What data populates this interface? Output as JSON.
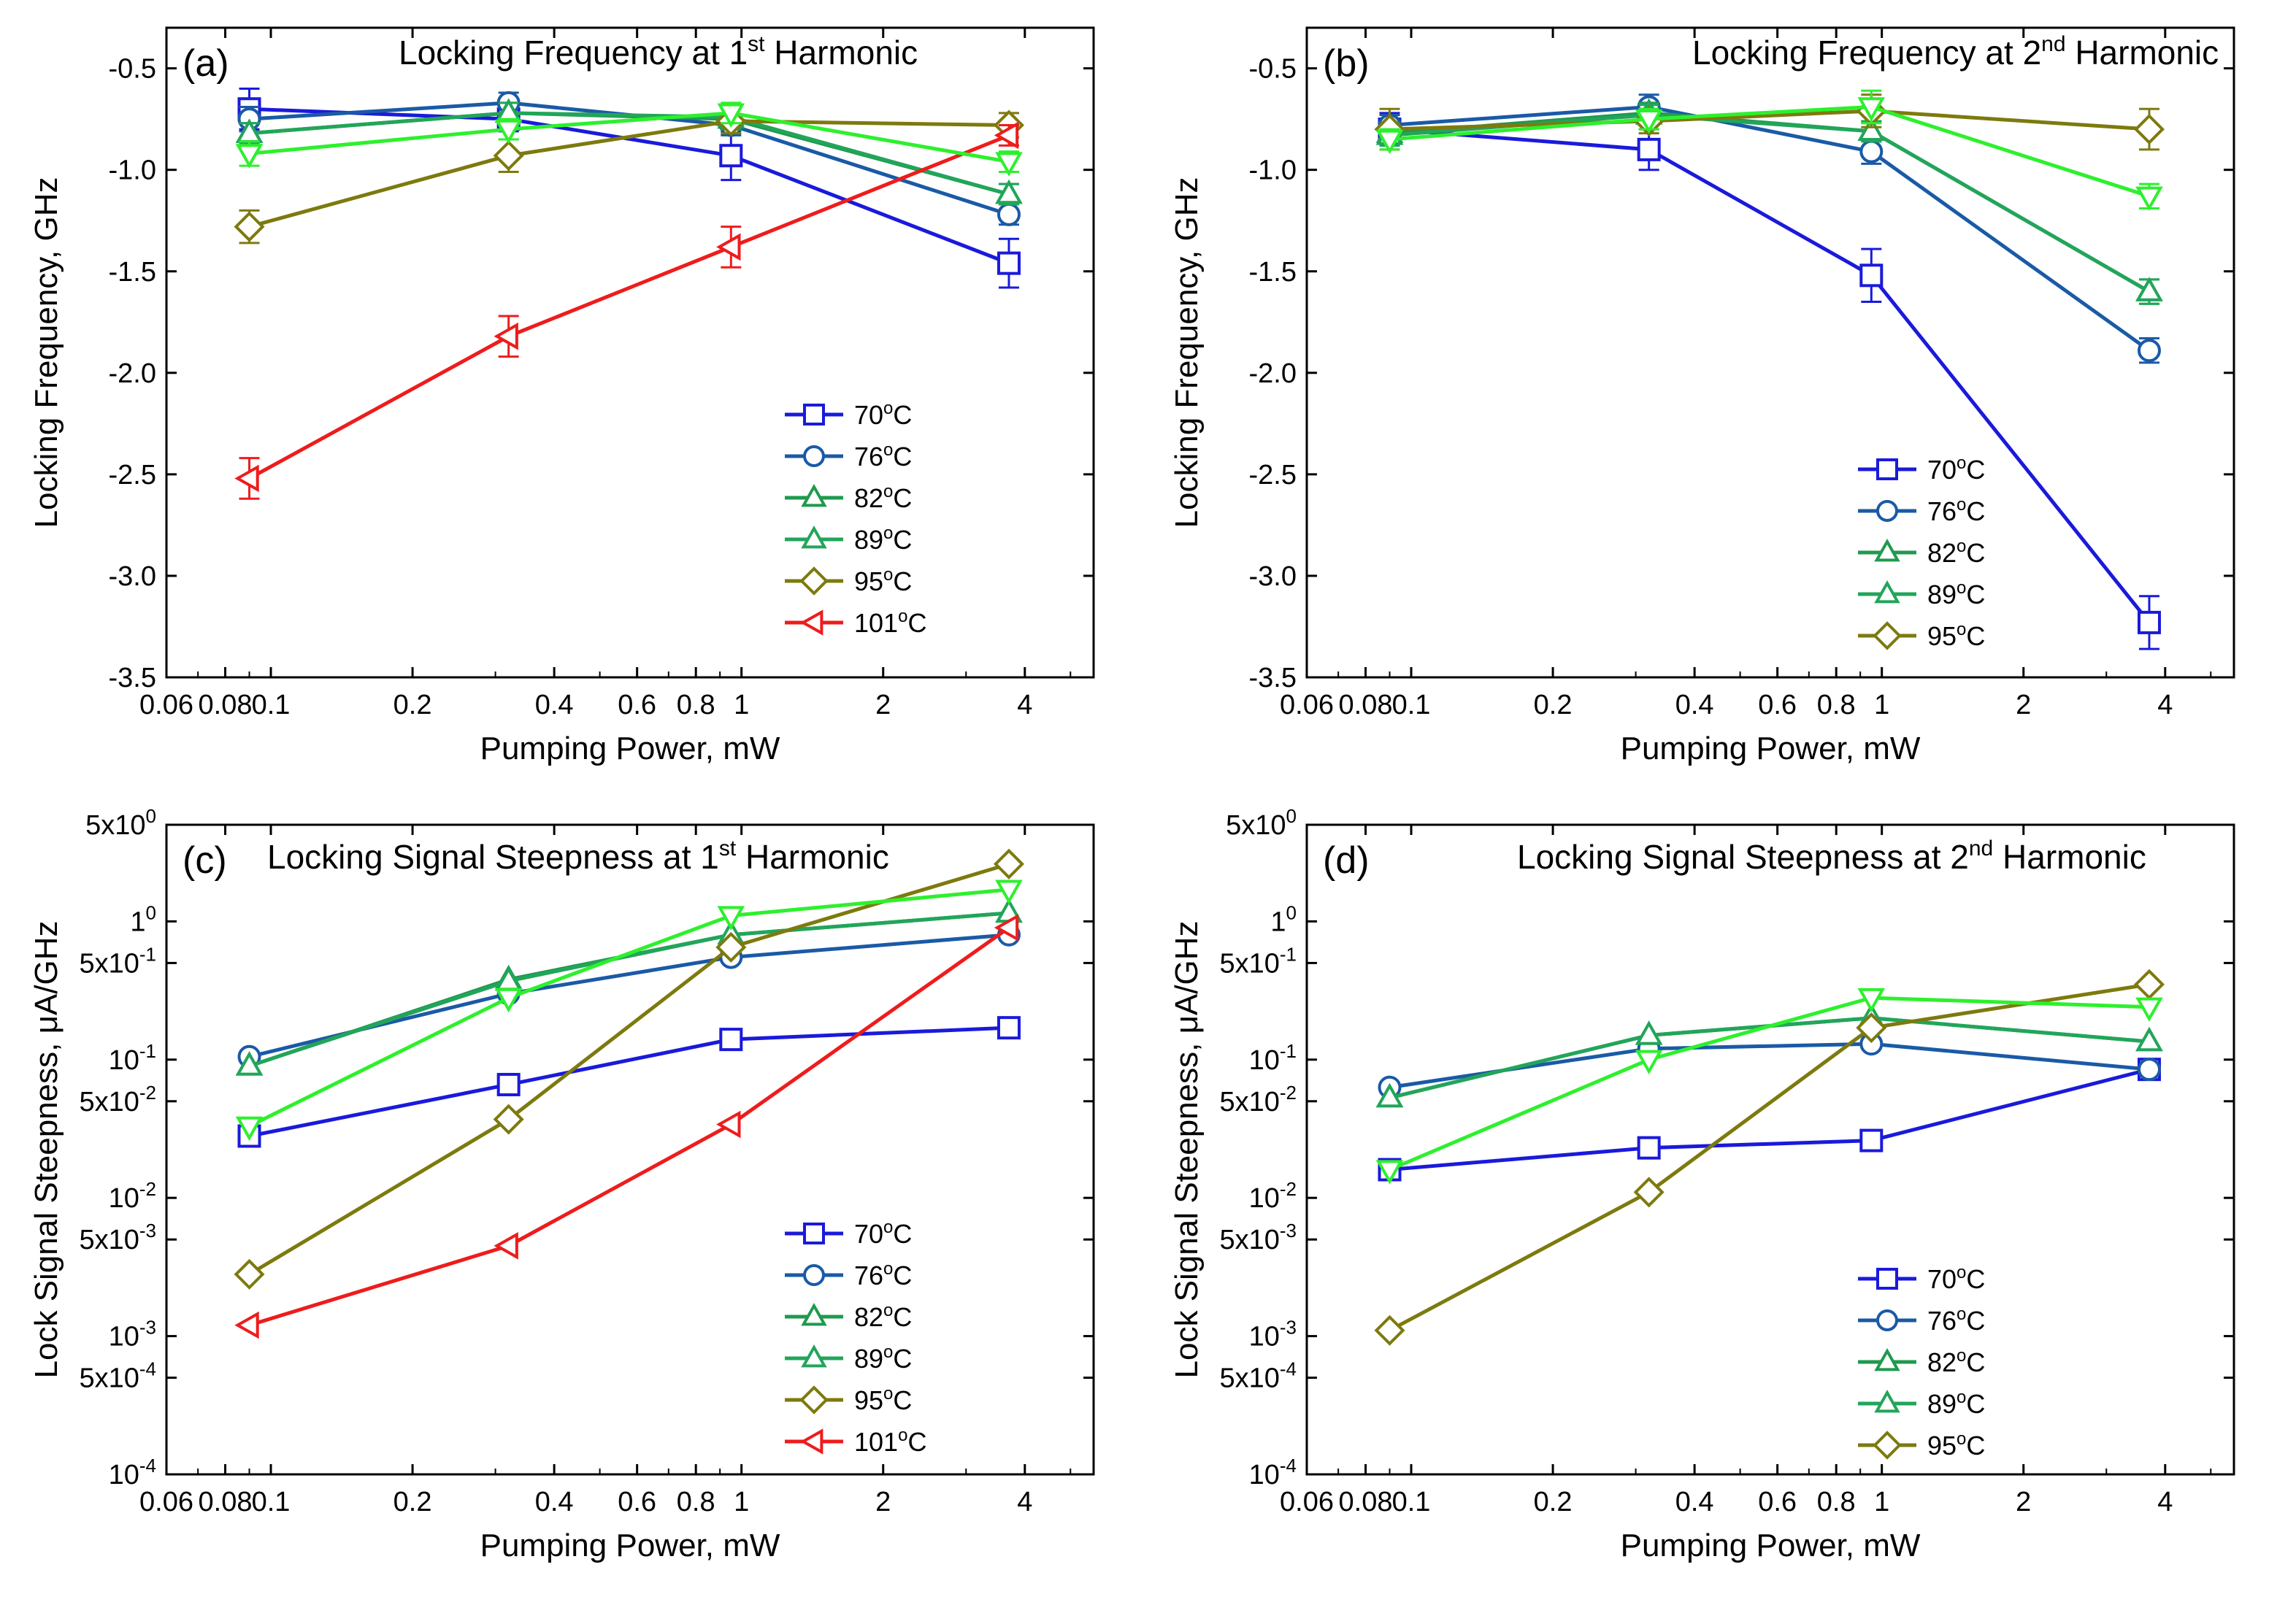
{
  "chart_data": [
    {
      "type": "line",
      "panel": "(a)",
      "title_main": "Locking Frequency at 1",
      "title_sup": "st",
      "title_rest": " Harmonic",
      "xlabel": "Pumping Power, mW",
      "ylabel": "Locking Frequency, GHz",
      "xscale": "log",
      "yscale": "linear",
      "xlim": [
        0.06,
        5.6
      ],
      "ylim": [
        -3.5,
        -0.3
      ],
      "xticks": [
        {
          "v": 0.06,
          "l": "0.06"
        },
        {
          "v": 0.08,
          "l": "0.08"
        },
        {
          "v": 0.1,
          "l": "0.1"
        },
        {
          "v": 0.2,
          "l": "0.2"
        },
        {
          "v": 0.4,
          "l": "0.4"
        },
        {
          "v": 0.6,
          "l": "0.6"
        },
        {
          "v": 0.8,
          "l": "0.8"
        },
        {
          "v": 1,
          "l": "1"
        },
        {
          "v": 2,
          "l": "2"
        },
        {
          "v": 4,
          "l": "4"
        }
      ],
      "yticks": [
        {
          "v": -0.5,
          "l": "-0.5"
        },
        {
          "v": -1.0,
          "l": "-1.0"
        },
        {
          "v": -1.5,
          "l": "-1.5"
        },
        {
          "v": -2.0,
          "l": "-2.0"
        },
        {
          "v": -2.5,
          "l": "-2.5"
        },
        {
          "v": -3.0,
          "l": "-3.0"
        },
        {
          "v": -3.5,
          "l": "-3.5"
        }
      ],
      "legend_position": "lower-right",
      "series": [
        {
          "name": "70",
          "unit": "oC",
          "marker": "square",
          "color": "#1a1adb",
          "x": [
            0.09,
            0.32,
            0.95,
            3.7
          ],
          "values": [
            -0.7,
            -0.75,
            -0.93,
            -1.46
          ],
          "err": [
            0.1,
            0.06,
            0.12,
            0.12
          ]
        },
        {
          "name": "76",
          "unit": "oC",
          "marker": "circle",
          "color": "#1a5aa6",
          "x": [
            0.09,
            0.32,
            0.95,
            3.7
          ],
          "values": [
            -0.75,
            -0.67,
            -0.78,
            -1.22
          ],
          "err": [
            0.06,
            0.05,
            0.05,
            0.05
          ]
        },
        {
          "name": "82",
          "unit": "oC",
          "marker": "triangle-up",
          "color": "#1f9a4e",
          "x": [
            0.09,
            0.32,
            0.95,
            3.7
          ],
          "values": [
            -0.82,
            -0.72,
            -0.75,
            -1.12
          ],
          "err": [
            0.05,
            0.05,
            0.05,
            0.05
          ]
        },
        {
          "name": "89",
          "unit": "oC",
          "marker": "triangle-up",
          "color": "#22a55a",
          "x": [
            0.09,
            0.32,
            0.95,
            3.7
          ],
          "values": [
            -0.82,
            -0.72,
            -0.74,
            -1.12
          ],
          "err": [
            0.05,
            0.05,
            0.05,
            0.05
          ]
        },
        {
          "name": "95",
          "unit": "oC",
          "marker": "diamond",
          "color": "#7d7a0e",
          "x": [
            0.09,
            0.32,
            0.95,
            3.7
          ],
          "values": [
            -1.28,
            -0.93,
            -0.76,
            -0.78
          ],
          "err": [
            0.08,
            0.08,
            0.06,
            0.06
          ]
        },
        {
          "name": "101",
          "unit": "oC",
          "marker": "triangle-left",
          "color": "#ee1c1c",
          "x": [
            0.09,
            0.32,
            0.95,
            3.7
          ],
          "values": [
            -2.52,
            -1.82,
            -1.38,
            -0.83
          ],
          "err": [
            0.1,
            0.1,
            0.1,
            0.05
          ]
        },
        {
          "name": "",
          "unit": "",
          "marker": "triangle-down",
          "color": "#2df02d",
          "legend": false,
          "x": [
            0.09,
            0.32,
            0.95,
            3.7
          ],
          "values": [
            -0.92,
            -0.8,
            -0.72,
            -0.96
          ],
          "err": [
            0.06,
            0.05,
            0.05,
            0.05
          ]
        }
      ]
    },
    {
      "type": "line",
      "panel": "(b)",
      "title_main": "Locking Frequency at 2",
      "title_sup": "nd",
      "title_rest": " Harmonic",
      "xlabel": "Pumping Power, mW",
      "ylabel": "Locking Frequency, GHz",
      "xscale": "log",
      "yscale": "linear",
      "xlim": [
        0.06,
        5.6
      ],
      "ylim": [
        -3.5,
        -0.3
      ],
      "xticks": [
        {
          "v": 0.06,
          "l": "0.06"
        },
        {
          "v": 0.08,
          "l": "0.08"
        },
        {
          "v": 0.1,
          "l": "0.1"
        },
        {
          "v": 0.2,
          "l": "0.2"
        },
        {
          "v": 0.4,
          "l": "0.4"
        },
        {
          "v": 0.6,
          "l": "0.6"
        },
        {
          "v": 0.8,
          "l": "0.8"
        },
        {
          "v": 1,
          "l": "1"
        },
        {
          "v": 2,
          "l": "2"
        },
        {
          "v": 4,
          "l": "4"
        }
      ],
      "yticks": [
        {
          "v": -0.5,
          "l": "-0.5"
        },
        {
          "v": -1.0,
          "l": "-1.0"
        },
        {
          "v": -1.5,
          "l": "-1.5"
        },
        {
          "v": -2.0,
          "l": "-2.0"
        },
        {
          "v": -2.5,
          "l": "-2.5"
        },
        {
          "v": -3.0,
          "l": "-3.0"
        },
        {
          "v": -3.5,
          "l": "-3.5"
        }
      ],
      "legend_position": "lower-right",
      "series": [
        {
          "name": "70",
          "unit": "oC",
          "marker": "square",
          "color": "#1a1adb",
          "x": [
            0.09,
            0.32,
            0.95,
            3.7
          ],
          "values": [
            -0.8,
            -0.9,
            -1.52,
            -3.23
          ],
          "err": [
            0.08,
            0.1,
            0.13,
            0.13
          ]
        },
        {
          "name": "76",
          "unit": "oC",
          "marker": "circle",
          "color": "#1a5aa6",
          "x": [
            0.09,
            0.32,
            0.95,
            3.7
          ],
          "values": [
            -0.78,
            -0.69,
            -0.91,
            -1.89
          ],
          "err": [
            0.05,
            0.06,
            0.06,
            0.06
          ]
        },
        {
          "name": "82",
          "unit": "oC",
          "marker": "triangle-up",
          "color": "#1f9a4e",
          "x": [
            0.09,
            0.32,
            0.95,
            3.7
          ],
          "values": [
            -0.82,
            -0.72,
            -0.81,
            -1.6
          ],
          "err": [
            0.05,
            0.05,
            0.05,
            0.06
          ]
        },
        {
          "name": "89",
          "unit": "oC",
          "marker": "triangle-up",
          "color": "#22a55a",
          "x": [
            0.09,
            0.32,
            0.95,
            3.7
          ],
          "values": [
            -0.83,
            -0.73,
            -0.81,
            -1.6
          ],
          "err": [
            0.05,
            0.05,
            0.05,
            0.06
          ]
        },
        {
          "name": "95",
          "unit": "oC",
          "marker": "diamond",
          "color": "#7d7a0e",
          "x": [
            0.09,
            0.32,
            0.95,
            3.7
          ],
          "values": [
            -0.8,
            -0.76,
            -0.71,
            -0.8
          ],
          "err": [
            0.1,
            0.06,
            0.08,
            0.1
          ]
        },
        {
          "name": "",
          "unit": "",
          "marker": "triangle-down",
          "color": "#2df02d",
          "legend": false,
          "x": [
            0.09,
            0.32,
            0.95,
            3.7
          ],
          "values": [
            -0.85,
            -0.75,
            -0.69,
            -1.13
          ],
          "err": [
            0.05,
            0.05,
            0.08,
            0.06
          ]
        }
      ]
    },
    {
      "type": "line",
      "panel": "(c)",
      "title_main": "Locking Signal Steepness at 1",
      "title_sup": "st",
      "title_rest": " Harmonic",
      "xlabel": "Pumping Power, mW",
      "ylabel": "Lock Signal Steepness, μA/GHz",
      "xscale": "log",
      "yscale": "log",
      "xlim": [
        0.06,
        5.6
      ],
      "ylim": [
        0.0001,
        5
      ],
      "xticks": [
        {
          "v": 0.06,
          "l": "0.06"
        },
        {
          "v": 0.08,
          "l": "0.08"
        },
        {
          "v": 0.1,
          "l": "0.1"
        },
        {
          "v": 0.2,
          "l": "0.2"
        },
        {
          "v": 0.4,
          "l": "0.4"
        },
        {
          "v": 0.6,
          "l": "0.6"
        },
        {
          "v": 0.8,
          "l": "0.8"
        },
        {
          "v": 1,
          "l": "1"
        },
        {
          "v": 2,
          "l": "2"
        },
        {
          "v": 4,
          "l": "4"
        }
      ],
      "yticks": [
        {
          "v": 5,
          "l": "5x10",
          "sup": "0"
        },
        {
          "v": 1,
          "l": "1",
          "sup": "0"
        },
        {
          "v": 0.5,
          "l": "5x10",
          "sup": "-1"
        },
        {
          "v": 0.1,
          "l": "10",
          "sup": "-1"
        },
        {
          "v": 0.05,
          "l": "5x10",
          "sup": "-2"
        },
        {
          "v": 0.01,
          "l": "10",
          "sup": "-2"
        },
        {
          "v": 0.005,
          "l": "5x10",
          "sup": "-3"
        },
        {
          "v": 0.001,
          "l": "10",
          "sup": "-3"
        },
        {
          "v": 0.0005,
          "l": "5x10",
          "sup": "-4"
        },
        {
          "v": 0.0001,
          "l": "10",
          "sup": "-4"
        }
      ],
      "legend_position": "lower-right",
      "series": [
        {
          "name": "70",
          "unit": "oC",
          "marker": "square",
          "color": "#1a1adb",
          "x": [
            0.09,
            0.32,
            0.95,
            3.7
          ],
          "values": [
            0.028,
            0.066,
            0.14,
            0.17
          ]
        },
        {
          "name": "76",
          "unit": "oC",
          "marker": "circle",
          "color": "#1a5aa6",
          "x": [
            0.09,
            0.32,
            0.95,
            3.7
          ],
          "values": [
            0.105,
            0.3,
            0.55,
            0.8
          ]
        },
        {
          "name": "82",
          "unit": "oC",
          "marker": "triangle-up",
          "color": "#1f9a4e",
          "x": [
            0.09,
            0.32,
            0.95,
            3.7
          ],
          "values": [
            0.09,
            0.38,
            0.8,
            1.15
          ]
        },
        {
          "name": "89",
          "unit": "oC",
          "marker": "triangle-up",
          "color": "#22a55a",
          "x": [
            0.09,
            0.32,
            0.95,
            3.7
          ],
          "values": [
            0.09,
            0.37,
            0.8,
            1.15
          ]
        },
        {
          "name": "95",
          "unit": "oC",
          "marker": "diamond",
          "color": "#7d7a0e",
          "x": [
            0.09,
            0.32,
            0.95,
            3.7
          ],
          "values": [
            0.0028,
            0.037,
            0.65,
            2.6
          ]
        },
        {
          "name": "101",
          "unit": "oC",
          "marker": "triangle-left",
          "color": "#ee1c1c",
          "x": [
            0.09,
            0.32,
            0.95,
            3.7
          ],
          "values": [
            0.0012,
            0.0045,
            0.034,
            0.9
          ]
        },
        {
          "name": "",
          "unit": "",
          "marker": "triangle-down",
          "color": "#2df02d",
          "legend": false,
          "x": [
            0.09,
            0.32,
            0.95,
            3.7
          ],
          "values": [
            0.033,
            0.28,
            1.1,
            1.7
          ]
        }
      ]
    },
    {
      "type": "line",
      "panel": "(d)",
      "title_main": "Locking Signal Steepness at 2",
      "title_sup": "nd",
      "title_rest": " Harmonic",
      "xlabel": "Pumping Power, mW",
      "ylabel": "Lock Signal Steepness, μA/GHz",
      "xscale": "log",
      "yscale": "log",
      "xlim": [
        0.06,
        5.6
      ],
      "ylim": [
        0.0001,
        5
      ],
      "xticks": [
        {
          "v": 0.06,
          "l": "0.06"
        },
        {
          "v": 0.08,
          "l": "0.08"
        },
        {
          "v": 0.1,
          "l": "0.1"
        },
        {
          "v": 0.2,
          "l": "0.2"
        },
        {
          "v": 0.4,
          "l": "0.4"
        },
        {
          "v": 0.6,
          "l": "0.6"
        },
        {
          "v": 0.8,
          "l": "0.8"
        },
        {
          "v": 1,
          "l": "1"
        },
        {
          "v": 2,
          "l": "2"
        },
        {
          "v": 4,
          "l": "4"
        }
      ],
      "yticks": [
        {
          "v": 5,
          "l": "5x10",
          "sup": "0"
        },
        {
          "v": 1,
          "l": "1",
          "sup": "0"
        },
        {
          "v": 0.5,
          "l": "5x10",
          "sup": "-1"
        },
        {
          "v": 0.1,
          "l": "10",
          "sup": "-1"
        },
        {
          "v": 0.05,
          "l": "5x10",
          "sup": "-2"
        },
        {
          "v": 0.01,
          "l": "10",
          "sup": "-2"
        },
        {
          "v": 0.005,
          "l": "5x10",
          "sup": "-3"
        },
        {
          "v": 0.001,
          "l": "10",
          "sup": "-3"
        },
        {
          "v": 0.0005,
          "l": "5x10",
          "sup": "-4"
        },
        {
          "v": 0.0001,
          "l": "10",
          "sup": "-4"
        }
      ],
      "legend_position": "lower-right",
      "series": [
        {
          "name": "70",
          "unit": "oC",
          "marker": "square",
          "color": "#1a1adb",
          "x": [
            0.09,
            0.32,
            0.95,
            3.7
          ],
          "values": [
            0.016,
            0.023,
            0.026,
            0.085
          ]
        },
        {
          "name": "76",
          "unit": "oC",
          "marker": "circle",
          "color": "#1a5aa6",
          "x": [
            0.09,
            0.32,
            0.95,
            3.7
          ],
          "values": [
            0.063,
            0.12,
            0.13,
            0.085
          ]
        },
        {
          "name": "82",
          "unit": "oC",
          "marker": "triangle-up",
          "color": "#1f9a4e",
          "x": [
            0.09,
            0.32,
            0.95,
            3.7
          ],
          "values": [
            0.053,
            0.15,
            0.2,
            0.135
          ]
        },
        {
          "name": "89",
          "unit": "oC",
          "marker": "triangle-up",
          "color": "#22a55a",
          "x": [
            0.09,
            0.32,
            0.95,
            3.7
          ],
          "values": [
            0.053,
            0.15,
            0.2,
            0.135
          ]
        },
        {
          "name": "95",
          "unit": "oC",
          "marker": "diamond",
          "color": "#7d7a0e",
          "x": [
            0.09,
            0.32,
            0.95,
            3.7
          ],
          "values": [
            0.0011,
            0.011,
            0.17,
            0.35
          ]
        },
        {
          "name": "",
          "unit": "",
          "marker": "triangle-down",
          "color": "#2df02d",
          "legend": false,
          "x": [
            0.09,
            0.32,
            0.95,
            3.7
          ],
          "values": [
            0.016,
            0.1,
            0.28,
            0.24
          ]
        }
      ]
    }
  ]
}
